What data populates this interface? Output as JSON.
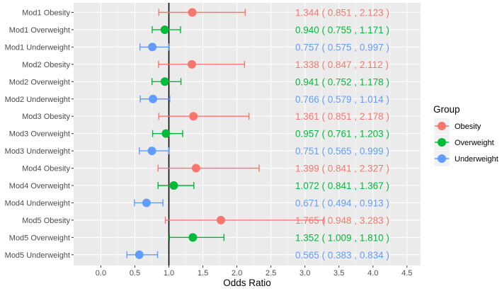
{
  "chart_data": {
    "type": "forest",
    "xlabel": "Odds Ratio",
    "xlim": [
      -0.4,
      4.7
    ],
    "xticks": [
      "0.0",
      "0.5",
      "1.0",
      "1.5",
      "2.0",
      "2.5",
      "3.0",
      "3.5",
      "4.0",
      "4.5"
    ],
    "reference_line": 1.0,
    "legend": {
      "title": "Group",
      "position": "right",
      "entries": [
        {
          "name": "Obesity",
          "color": "#F8766D"
        },
        {
          "name": "Overweight",
          "color": "#00BA38"
        },
        {
          "name": "Underweight",
          "color": "#619CFF"
        }
      ]
    },
    "rows": [
      {
        "label": "Mod1 Obesity",
        "group": "Obesity",
        "or": 1.344,
        "lo": 0.851,
        "hi": 2.123,
        "text": "1.344 ( 0.851 , 2.123 )"
      },
      {
        "label": "Mod1 Overweight",
        "group": "Overweight",
        "or": 0.94,
        "lo": 0.755,
        "hi": 1.171,
        "text": "0.940 ( 0.755 , 1.171 )"
      },
      {
        "label": "Mod1 Underweight",
        "group": "Underweight",
        "or": 0.757,
        "lo": 0.575,
        "hi": 0.997,
        "text": "0.757 ( 0.575 , 0.997 )"
      },
      {
        "label": "Mod2 Obesity",
        "group": "Obesity",
        "or": 1.338,
        "lo": 0.847,
        "hi": 2.112,
        "text": "1.338 ( 0.847 , 2.112 )"
      },
      {
        "label": "Mod2 Overweight",
        "group": "Overweight",
        "or": 0.941,
        "lo": 0.752,
        "hi": 1.178,
        "text": "0.941 ( 0.752 , 1.178 )"
      },
      {
        "label": "Mod2 Underweight",
        "group": "Underweight",
        "or": 0.766,
        "lo": 0.579,
        "hi": 1.014,
        "text": "0.766 ( 0.579 , 1.014 )"
      },
      {
        "label": "Mod3 Obesity",
        "group": "Obesity",
        "or": 1.361,
        "lo": 0.851,
        "hi": 2.178,
        "text": "1.361 ( 0.851 , 2.178 )"
      },
      {
        "label": "Mod3 Overweight",
        "group": "Overweight",
        "or": 0.957,
        "lo": 0.761,
        "hi": 1.203,
        "text": "0.957 ( 0.761 , 1.203 )"
      },
      {
        "label": "Mod3 Underweight",
        "group": "Underweight",
        "or": 0.751,
        "lo": 0.565,
        "hi": 0.999,
        "text": "0.751 ( 0.565 , 0.999 )"
      },
      {
        "label": "Mod4 Obesity",
        "group": "Obesity",
        "or": 1.399,
        "lo": 0.841,
        "hi": 2.327,
        "text": "1.399 ( 0.841 , 2.327 )"
      },
      {
        "label": "Mod4 Overweight",
        "group": "Overweight",
        "or": 1.072,
        "lo": 0.841,
        "hi": 1.367,
        "text": "1.072 ( 0.841 , 1.367 )"
      },
      {
        "label": "Mod4 Underweight",
        "group": "Underweight",
        "or": 0.671,
        "lo": 0.494,
        "hi": 0.913,
        "text": "0.671 ( 0.494 , 0.913 )"
      },
      {
        "label": "Mod5 Obesity",
        "group": "Obesity",
        "or": 1.765,
        "lo": 0.948,
        "hi": 3.283,
        "text": "1.765 ( 0.948 , 3.283 )"
      },
      {
        "label": "Mod5 Overweight",
        "group": "Overweight",
        "or": 1.352,
        "lo": 1.009,
        "hi": 1.81,
        "text": "1.352 ( 1.009 , 1.810 )"
      },
      {
        "label": "Mod5 Underweight",
        "group": "Underweight",
        "or": 0.565,
        "lo": 0.383,
        "hi": 0.834,
        "text": "0.565 ( 0.383 , 0.834 )"
      }
    ],
    "panel_background": "#EBEBEB",
    "grid_color": "#FFFFFF"
  }
}
